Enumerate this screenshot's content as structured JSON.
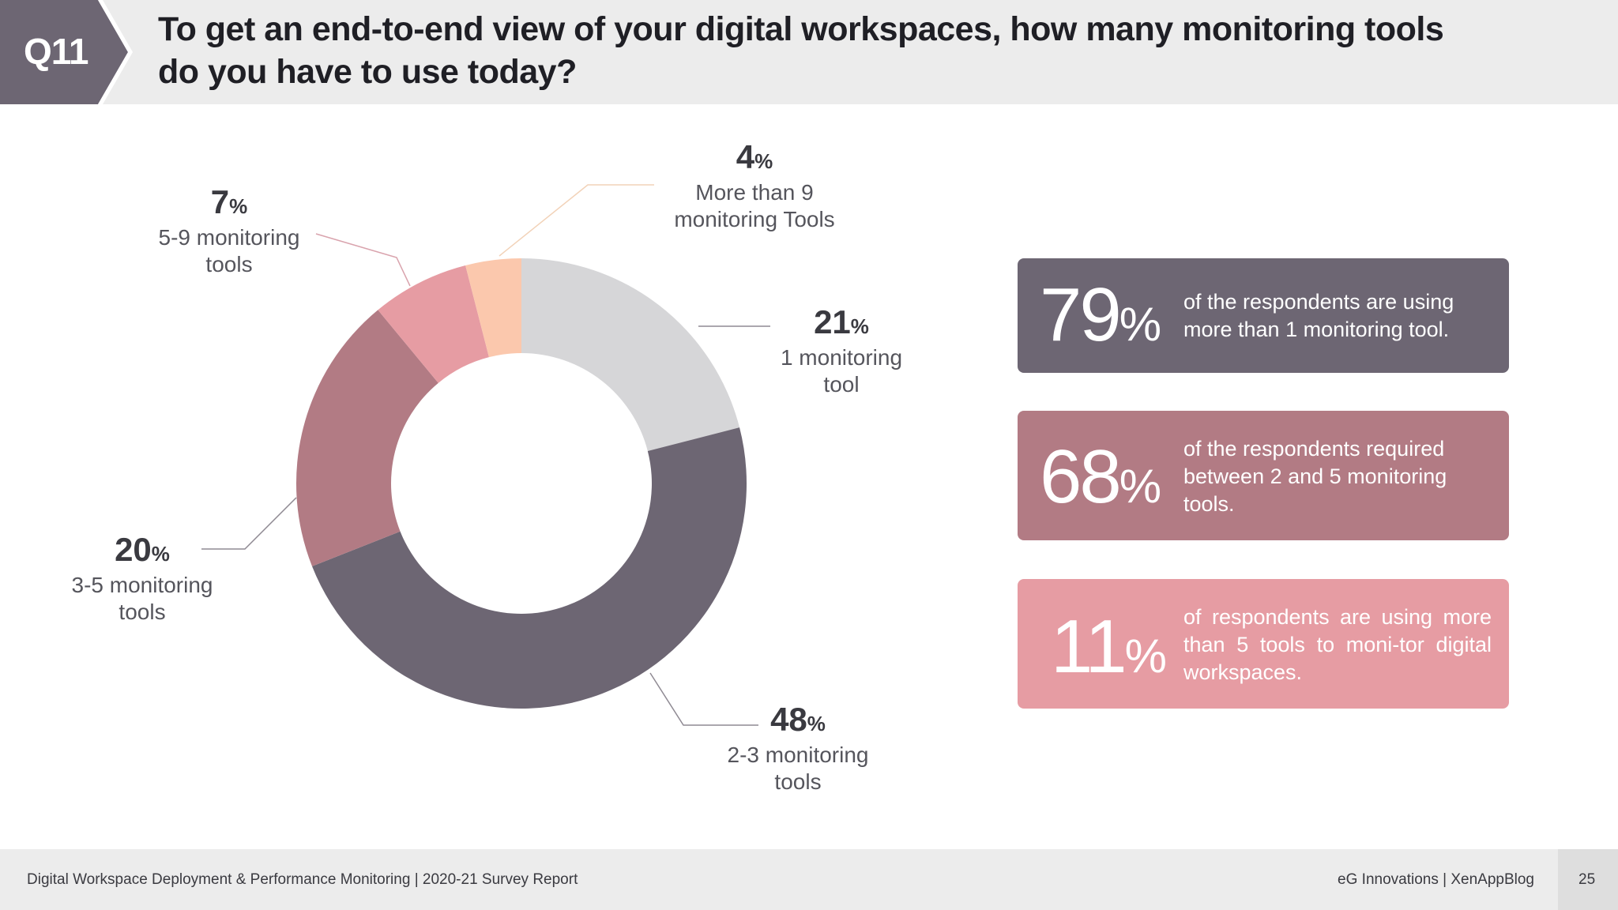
{
  "header": {
    "question_tag": "Q11",
    "title_line1": "To get an end-to-end view of your digital workspaces, how many monitoring tools",
    "title_line2": "do you have to use today?"
  },
  "chart_data": {
    "type": "pie",
    "variant": "donut",
    "title": "To get an end-to-end view of your digital workspaces, how many monitoring tools do you have to use today?",
    "categories": [
      "1 monitoring tool",
      "2-3 monitoring tools",
      "3-5 monitoring tools",
      "5-9 monitoring tools",
      "More than 9 monitoring Tools"
    ],
    "values": [
      21,
      48,
      20,
      7,
      4
    ],
    "unit": "%",
    "colors": [
      "#d6d6d8",
      "#6d6673",
      "#b27b84",
      "#e69ca3",
      "#fbc8ad"
    ],
    "labels": [
      {
        "pct": "21",
        "unit": "%",
        "line1": "1 monitoring",
        "line2": "tool"
      },
      {
        "pct": "48",
        "unit": "%",
        "line1": "2-3 monitoring",
        "line2": "tools"
      },
      {
        "pct": "20",
        "unit": "%",
        "line1": "3-5 monitoring",
        "line2": "tools"
      },
      {
        "pct": "7",
        "unit": "%",
        "line1": "5-9 monitoring",
        "line2": "tools"
      },
      {
        "pct": "4",
        "unit": "%",
        "line1": "More than 9",
        "line2": "monitoring Tools"
      }
    ]
  },
  "stats": [
    {
      "value": "79",
      "unit": "%",
      "text": "of the respondents are using more than 1 monitoring tool."
    },
    {
      "value": "68",
      "unit": "%",
      "text": "of the respondents required between 2 and 5 monitoring tools."
    },
    {
      "value": "11",
      "unit": "%",
      "text": "of respondents are using more than 5 tools to moni-tor digital workspaces."
    }
  ],
  "footer": {
    "report": "Digital Workspace Deployment & Performance Monitoring | 2020-21 Survey Report",
    "brands": "eG Innovations  |  XenAppBlog",
    "page": "25"
  }
}
